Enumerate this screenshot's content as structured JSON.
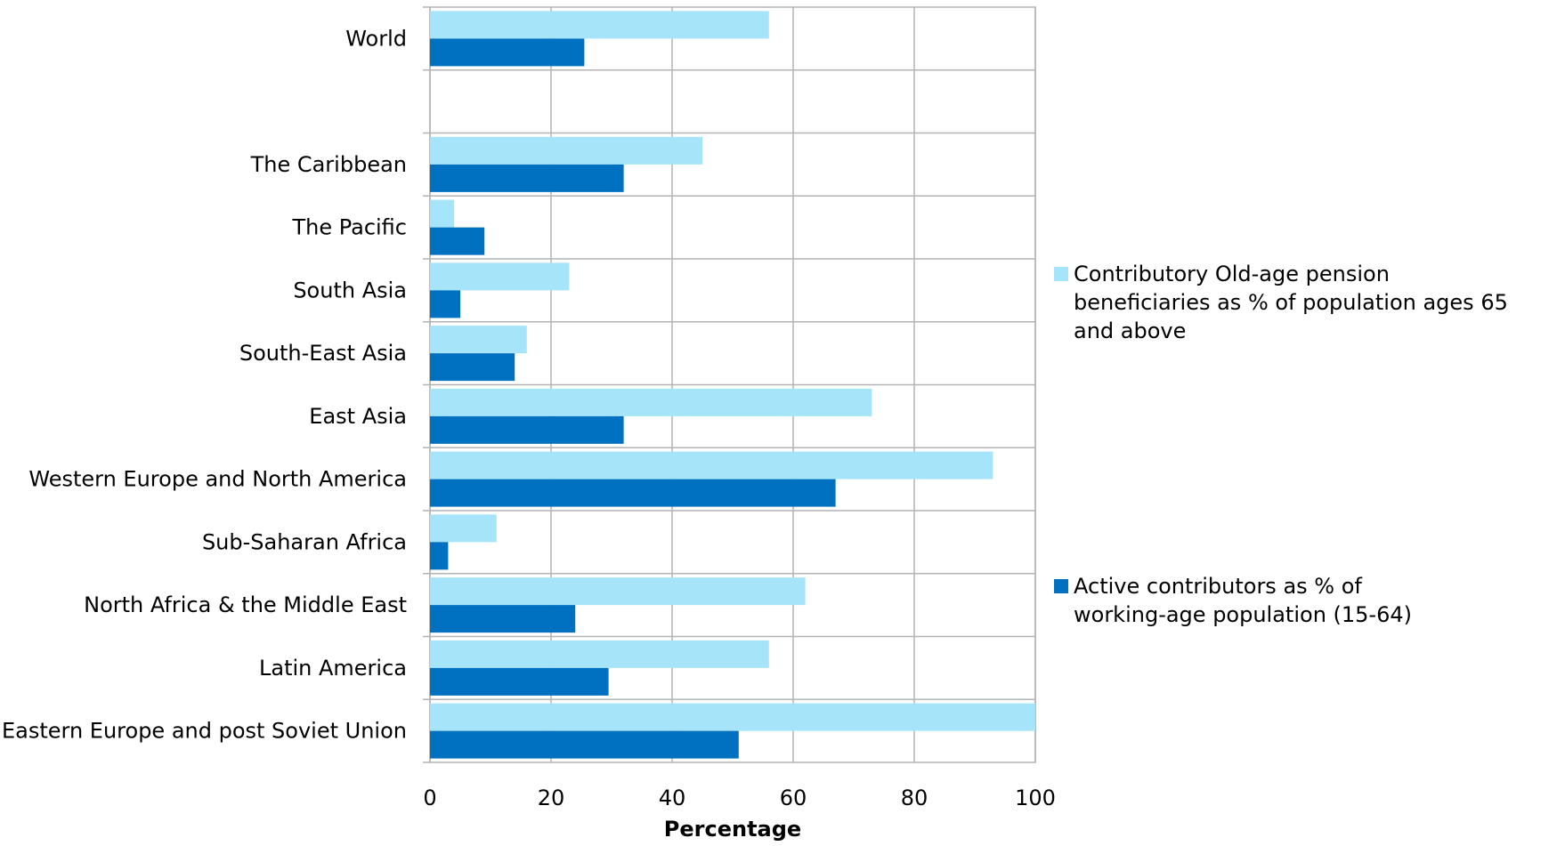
{
  "chart_data": {
    "type": "bar",
    "orientation": "horizontal",
    "xlabel": "Percentage",
    "ylabel": "",
    "xlim": [
      0,
      100
    ],
    "xticks": [
      0,
      20,
      40,
      60,
      80,
      100
    ],
    "grid": true,
    "legend_position": "right",
    "categories": [
      "World",
      "",
      "The Caribbean",
      "The Pacific",
      "South Asia",
      "South-East Asia",
      "East Asia",
      "Western Europe and North America",
      "Sub-Saharan Africa",
      "North Africa & the Middle East",
      "Latin America",
      "Eastern Europe and post Soviet Union"
    ],
    "series": [
      {
        "name": "Contributory Old-age pension beneficiaries as % of population ages 65 and above",
        "color": "#a6e4fa",
        "values": [
          56,
          null,
          45,
          4,
          23,
          16,
          73,
          93,
          11,
          62,
          56,
          100
        ]
      },
      {
        "name": "Active contributors as % of working-age population (15-64)",
        "color": "#0070c0",
        "values": [
          25.5,
          null,
          32,
          9,
          5,
          14,
          32,
          67,
          3,
          24,
          29.5,
          51
        ]
      }
    ]
  }
}
